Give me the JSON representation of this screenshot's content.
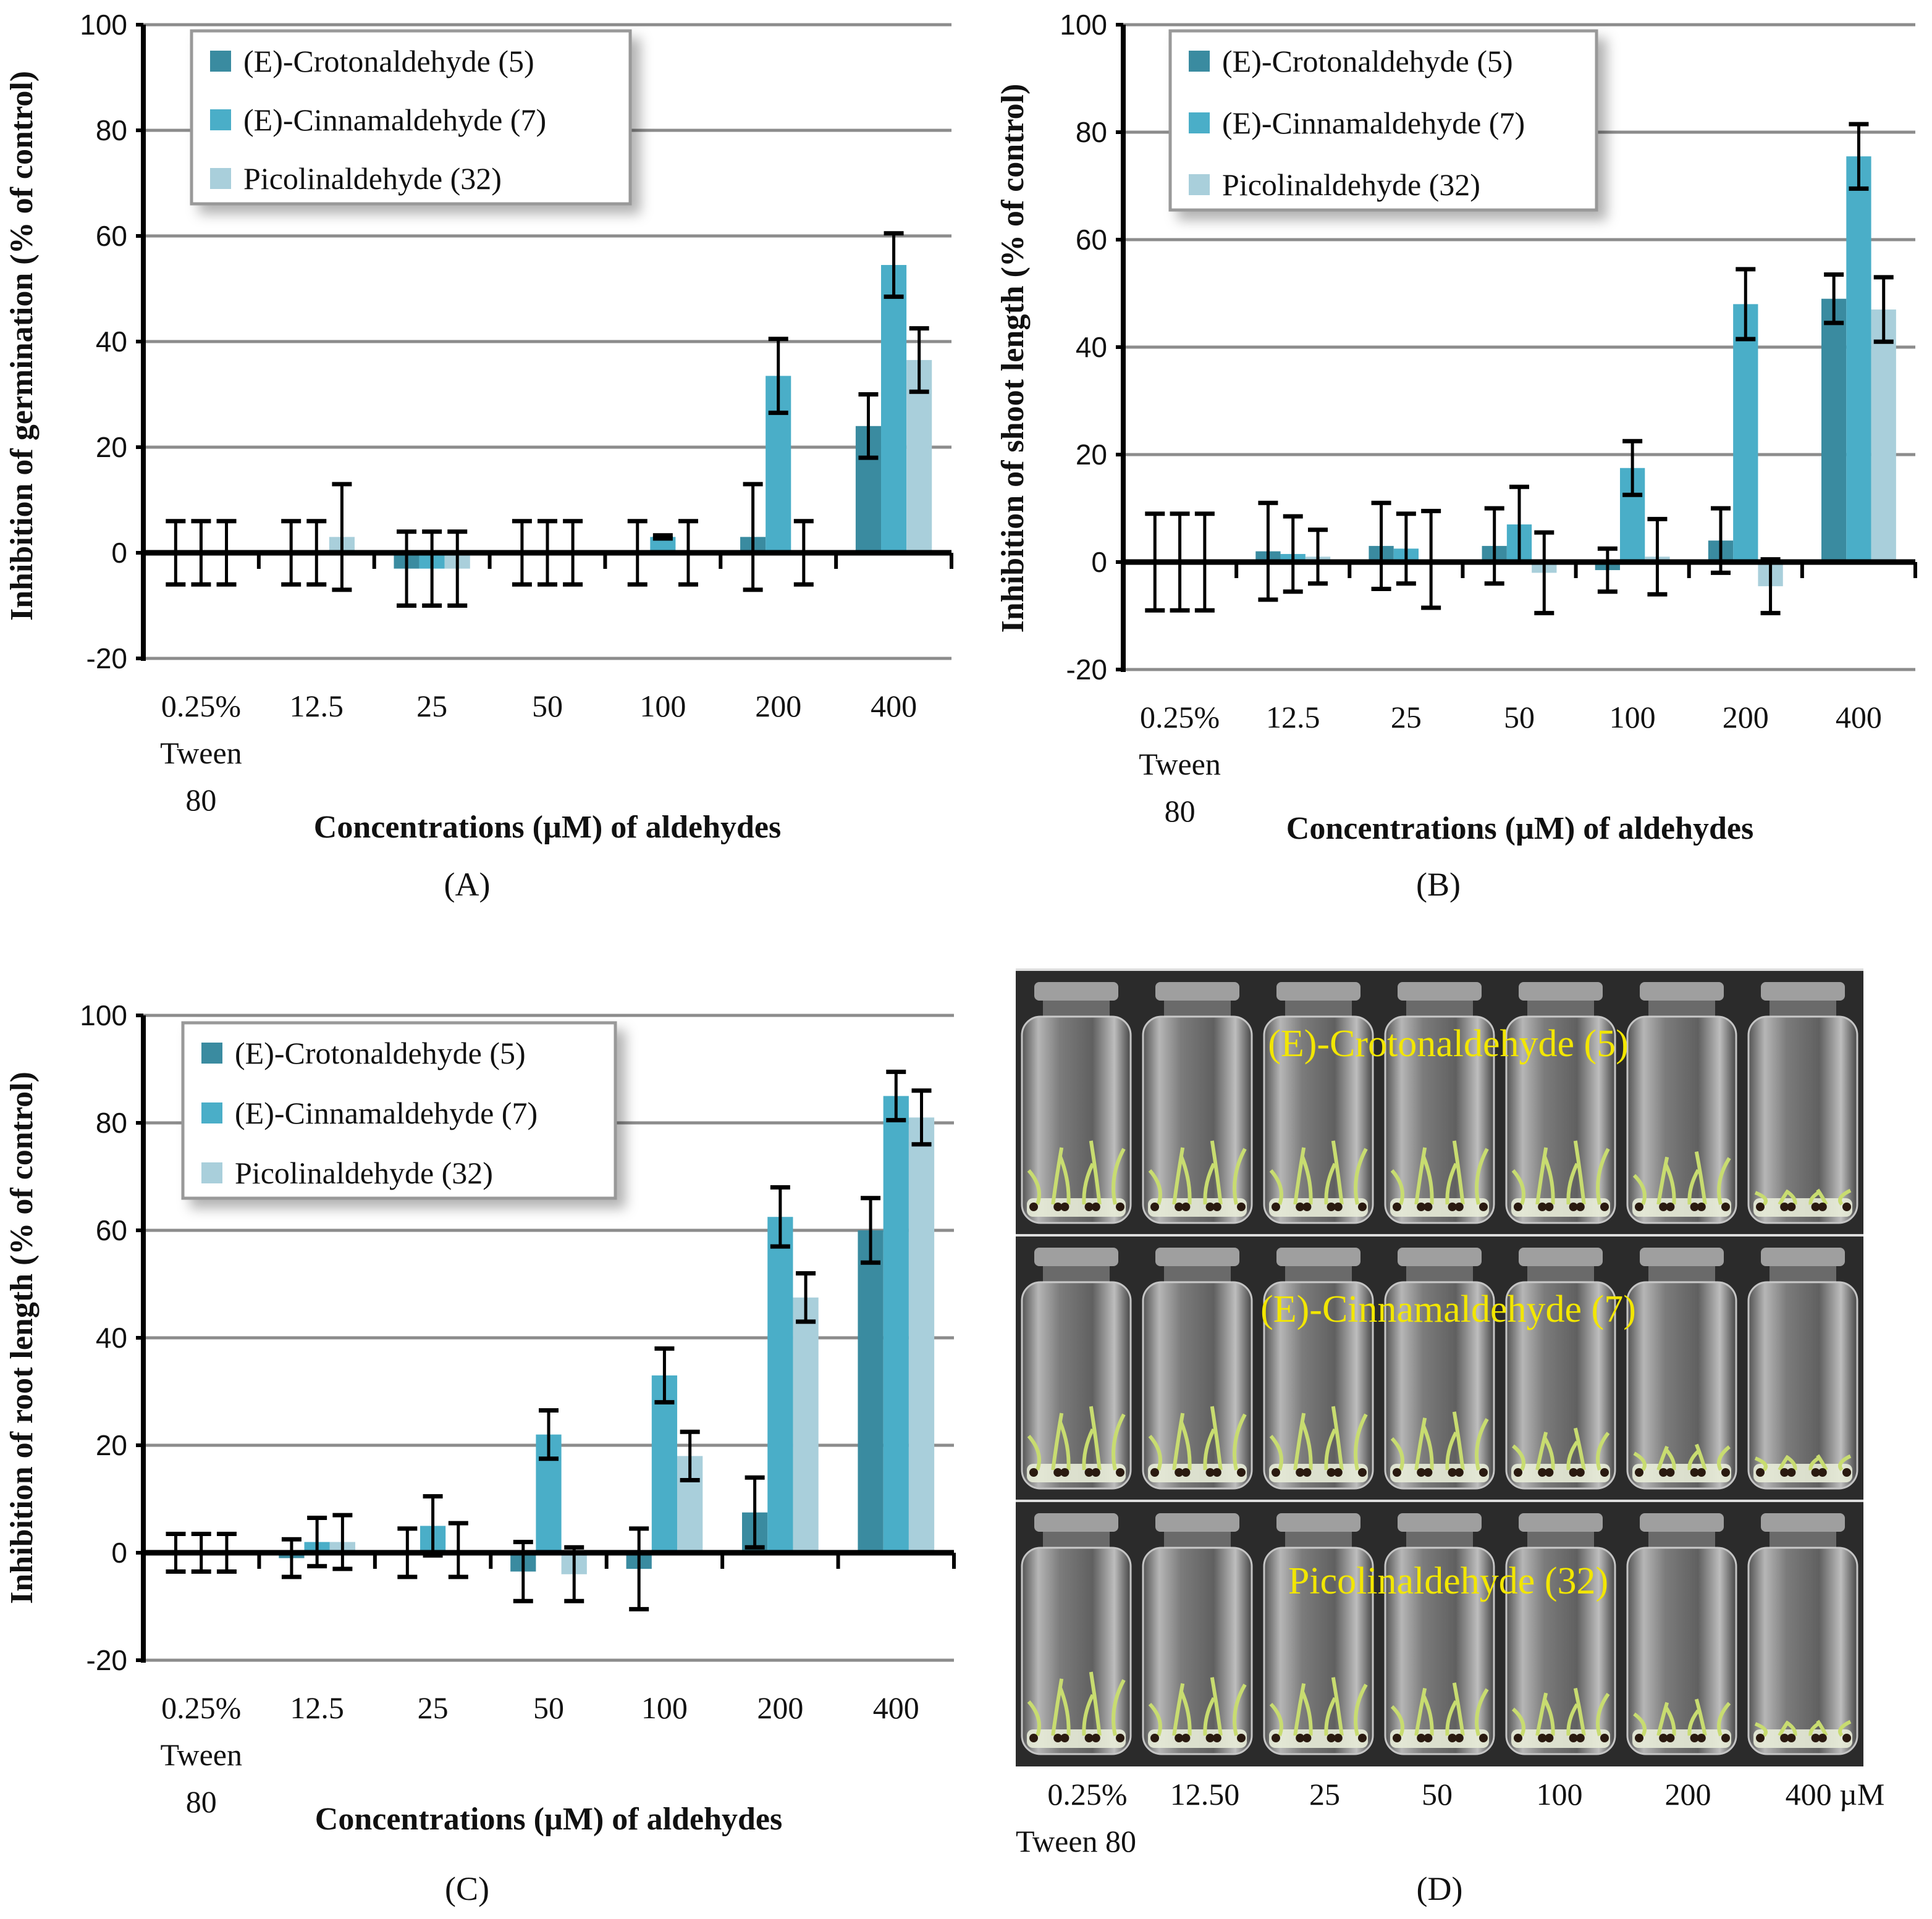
{
  "legend": [
    "(E)-Crotonaldehyde (5)",
    "(E)-Cinnamaldehyde (7)",
    "Picolinaldehyde (32)"
  ],
  "colors": {
    "crotonaldehyde": "#3a8ba0",
    "cinnamaldehyde": "#4aaec8",
    "picolinaldehyde": "#a9cfdb",
    "grid": "#8c8c8c",
    "axis": "#000000",
    "photo_label": "#f2e600"
  },
  "chart_data": [
    {
      "type": "bar",
      "caption": "(A)",
      "ylabel": "Inhibition of germination (% of control)",
      "xlabel": "Concentrations (µM) of aldehydes",
      "ylim": [
        -20,
        100
      ],
      "yticks": [
        "-20",
        "0",
        "20",
        "40",
        "60",
        "80",
        "100"
      ],
      "categories": [
        [
          "0.25%",
          "Tween",
          "80"
        ],
        [
          "12.5"
        ],
        [
          "25"
        ],
        [
          "50"
        ],
        [
          "100"
        ],
        [
          "200"
        ],
        [
          "400"
        ]
      ],
      "series": [
        {
          "name": "(E)-Crotonaldehyde (5)",
          "values": [
            0,
            0,
            -3,
            0,
            0,
            3,
            24
          ],
          "errors": [
            6,
            6,
            7,
            6,
            6,
            10,
            6
          ]
        },
        {
          "name": "(E)-Cinnamaldehyde (7)",
          "values": [
            0,
            0,
            -3,
            0,
            3,
            33.5,
            54.5
          ],
          "errors": [
            6,
            6,
            7,
            6,
            0.3,
            7,
            6
          ]
        },
        {
          "name": "Picolinaldehyde (32)",
          "values": [
            0,
            3,
            -3,
            0,
            0,
            0,
            36.5
          ],
          "errors": [
            6,
            10,
            7,
            6,
            6,
            6,
            6
          ]
        }
      ]
    },
    {
      "type": "bar",
      "caption": "(B)",
      "ylabel": "Inhibition of shoot length  (% of control)",
      "xlabel": "Concentrations (µM) of aldehydes",
      "ylim": [
        -20,
        100
      ],
      "yticks": [
        "-20",
        "0",
        "20",
        "40",
        "60",
        "80",
        "100"
      ],
      "categories": [
        [
          "0.25%",
          "Tween",
          "80"
        ],
        [
          "12.5"
        ],
        [
          "25"
        ],
        [
          "50"
        ],
        [
          "100"
        ],
        [
          "200"
        ],
        [
          "400"
        ]
      ],
      "series": [
        {
          "name": "(E)-Crotonaldehyde (5)",
          "values": [
            0,
            2,
            3,
            3,
            -1.5,
            4,
            49
          ],
          "errors": [
            9,
            9,
            8,
            7,
            4,
            6,
            4.5
          ]
        },
        {
          "name": "(E)-Cinnamaldehyde (7)",
          "values": [
            0,
            1.5,
            2.5,
            7,
            17.5,
            48,
            75.5
          ],
          "errors": [
            9,
            7,
            6.5,
            7,
            5,
            6.5,
            6
          ]
        },
        {
          "name": "Picolinaldehyde (32)",
          "values": [
            0,
            1,
            0.5,
            -2,
            1,
            -4.5,
            47
          ],
          "errors": [
            9,
            5,
            9,
            7.5,
            7,
            5,
            6
          ]
        }
      ]
    },
    {
      "type": "bar",
      "caption": "(C)",
      "ylabel": "Inhibition of root length (% of control)",
      "xlabel": "Concentrations (µM) of aldehydes",
      "ylim": [
        -20,
        100
      ],
      "yticks": [
        "-20",
        "0",
        "20",
        "40",
        "60",
        "80",
        "100"
      ],
      "categories": [
        [
          "0.25%",
          "Tween",
          "80"
        ],
        [
          "12.5"
        ],
        [
          "25"
        ],
        [
          "50"
        ],
        [
          "100"
        ],
        [
          "200"
        ],
        [
          "400"
        ]
      ],
      "series": [
        {
          "name": "(E)-Crotonaldehyde (5)",
          "values": [
            0,
            -1,
            0,
            -3.5,
            -3,
            7.5,
            60
          ],
          "errors": [
            3.5,
            3.5,
            4.5,
            5.5,
            7.5,
            6.5,
            6
          ]
        },
        {
          "name": "(E)-Cinnamaldehyde (7)",
          "values": [
            0,
            2,
            5,
            22,
            33,
            62.5,
            85
          ],
          "errors": [
            3.5,
            4.5,
            5.5,
            4.5,
            5,
            5.5,
            4.5
          ]
        },
        {
          "name": "Picolinaldehyde (32)",
          "values": [
            0,
            2,
            0.5,
            -4,
            18,
            47.5,
            81
          ],
          "errors": [
            3.5,
            5,
            5,
            5,
            4.5,
            4.5,
            5
          ]
        }
      ]
    }
  ],
  "photo": {
    "caption": "(D)",
    "row_labels": [
      "(E)-Crotonaldehyde (5)",
      "(E)-Cinnamaldehyde (7)",
      "Picolinaldehyde (32)"
    ],
    "column_labels": [
      "0.25%",
      "12.50",
      "25",
      "50",
      "100",
      "200",
      "400 µM"
    ],
    "column_sublabel": "Tween 80",
    "seedling_growth": [
      [
        1,
        1,
        1,
        1,
        1,
        0.8,
        0.1
      ],
      [
        1,
        1,
        1,
        0.9,
        0.6,
        0.3,
        0.1
      ],
      [
        1,
        0.9,
        0.9,
        0.8,
        0.7,
        0.5,
        0.1
      ]
    ]
  }
}
